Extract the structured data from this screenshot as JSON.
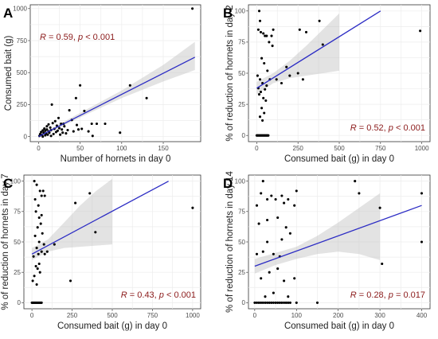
{
  "chart_data": [
    {
      "type": "scatter",
      "panel": "A",
      "xlabel": "Number of hornets in day 0",
      "ylabel": "Consumed bait (g)",
      "xticks": [
        0,
        50,
        100,
        150
      ],
      "yticks": [
        0,
        250,
        500,
        750,
        1000
      ],
      "xlim": [
        -10,
        195
      ],
      "ylim": [
        -40,
        1030
      ],
      "stat_r": "R = 0.59, ",
      "stat_p": "p < 0.001",
      "stat_pos": "top-left",
      "fit": {
        "x": [
          0,
          188
        ],
        "y": [
          0,
          620
        ]
      },
      "band": {
        "x": [
          0,
          30,
          60,
          100,
          150,
          188
        ],
        "lower": [
          -10,
          85,
          180,
          300,
          430,
          520
        ],
        "upper": [
          10,
          115,
          220,
          360,
          560,
          740
        ]
      },
      "points": [
        [
          1,
          5
        ],
        [
          2,
          20
        ],
        [
          3,
          35
        ],
        [
          4,
          12
        ],
        [
          5,
          48
        ],
        [
          5,
          0
        ],
        [
          6,
          30
        ],
        [
          7,
          62
        ],
        [
          8,
          10
        ],
        [
          8,
          45
        ],
        [
          9,
          25
        ],
        [
          10,
          80
        ],
        [
          10,
          55
        ],
        [
          11,
          15
        ],
        [
          12,
          95
        ],
        [
          12,
          40
        ],
        [
          13,
          30
        ],
        [
          14,
          70
        ],
        [
          15,
          50
        ],
        [
          15,
          5
        ],
        [
          16,
          250
        ],
        [
          17,
          105
        ],
        [
          18,
          20
        ],
        [
          19,
          60
        ],
        [
          20,
          120
        ],
        [
          21,
          35
        ],
        [
          22,
          85
        ],
        [
          23,
          45
        ],
        [
          24,
          145
        ],
        [
          25,
          65
        ],
        [
          26,
          15
        ],
        [
          27,
          100
        ],
        [
          28,
          55
        ],
        [
          29,
          30
        ],
        [
          30,
          100
        ],
        [
          31,
          80
        ],
        [
          33,
          25
        ],
        [
          35,
          50
        ],
        [
          37,
          205
        ],
        [
          40,
          130
        ],
        [
          42,
          40
        ],
        [
          45,
          300
        ],
        [
          46,
          90
        ],
        [
          48,
          55
        ],
        [
          50,
          400
        ],
        [
          52,
          60
        ],
        [
          55,
          200
        ],
        [
          60,
          40
        ],
        [
          64,
          100
        ],
        [
          65,
          5
        ],
        [
          70,
          100
        ],
        [
          80,
          100
        ],
        [
          98,
          30
        ],
        [
          110,
          400
        ],
        [
          130,
          300
        ],
        [
          185,
          1000
        ]
      ]
    },
    {
      "type": "scatter",
      "panel": "B",
      "xlabel": "Consumed bait (g) in day 0",
      "ylabel": "% of reduction of hornets in day 2",
      "xticks": [
        0,
        250,
        500,
        750,
        1000
      ],
      "yticks": [
        0,
        25,
        50,
        75,
        100
      ],
      "xlim": [
        -50,
        1050
      ],
      "ylim": [
        -5,
        105
      ],
      "stat_r": "R = 0.52, ",
      "stat_p": "p < 0.001",
      "stat_pos": "bottom-right",
      "fit": {
        "x": [
          0,
          750
        ],
        "y": [
          38,
          100
        ]
      },
      "band": {
        "x": [
          0,
          100,
          200,
          300,
          400,
          500
        ],
        "lower": [
          33,
          42,
          46,
          48,
          50,
          52
        ],
        "upper": [
          43,
          50,
          60,
          72,
          85,
          98
        ]
      },
      "points": [
        [
          0,
          0
        ],
        [
          5,
          0
        ],
        [
          10,
          0
        ],
        [
          15,
          0
        ],
        [
          20,
          0
        ],
        [
          25,
          0
        ],
        [
          30,
          0
        ],
        [
          35,
          0
        ],
        [
          40,
          0
        ],
        [
          45,
          0
        ],
        [
          50,
          0
        ],
        [
          55,
          0
        ],
        [
          60,
          0
        ],
        [
          65,
          0
        ],
        [
          70,
          0
        ],
        [
          15,
          100
        ],
        [
          20,
          92
        ],
        [
          10,
          85
        ],
        [
          25,
          83
        ],
        [
          40,
          82
        ],
        [
          50,
          80
        ],
        [
          60,
          80
        ],
        [
          75,
          75
        ],
        [
          90,
          80
        ],
        [
          100,
          85
        ],
        [
          95,
          72
        ],
        [
          30,
          62
        ],
        [
          45,
          58
        ],
        [
          5,
          48
        ],
        [
          20,
          45
        ],
        [
          35,
          42
        ],
        [
          60,
          40
        ],
        [
          10,
          38
        ],
        [
          50,
          37
        ],
        [
          25,
          35
        ],
        [
          40,
          30
        ],
        [
          55,
          28
        ],
        [
          30,
          22
        ],
        [
          45,
          18
        ],
        [
          20,
          15
        ],
        [
          35,
          12
        ],
        [
          15,
          33
        ],
        [
          65,
          52
        ],
        [
          80,
          45
        ],
        [
          120,
          45
        ],
        [
          150,
          42
        ],
        [
          180,
          55
        ],
        [
          200,
          48
        ],
        [
          250,
          50
        ],
        [
          280,
          45
        ],
        [
          260,
          85
        ],
        [
          300,
          83
        ],
        [
          380,
          92
        ],
        [
          400,
          73
        ],
        [
          990,
          84
        ]
      ]
    },
    {
      "type": "scatter",
      "panel": "C",
      "xlabel": "Consumed bait (g) in day 0",
      "ylabel": "% of reduction of hornets in day 7",
      "xticks": [
        0,
        250,
        500,
        750,
        1000
      ],
      "yticks": [
        0,
        25,
        50,
        75,
        100
      ],
      "xlim": [
        -50,
        1050
      ],
      "ylim": [
        -5,
        105
      ],
      "stat_r": "R = 0.43, ",
      "stat_p": "p < 0.001",
      "stat_pos": "bottom-right",
      "fit": {
        "x": [
          0,
          850
        ],
        "y": [
          40,
          100
        ]
      },
      "band": {
        "x": [
          0,
          100,
          200,
          300,
          400,
          500
        ],
        "lower": [
          35,
          42,
          45,
          46,
          47,
          48
        ],
        "upper": [
          45,
          52,
          66,
          80,
          92,
          102
        ]
      },
      "points": [
        [
          0,
          0
        ],
        [
          5,
          0
        ],
        [
          10,
          0
        ],
        [
          15,
          0
        ],
        [
          20,
          0
        ],
        [
          25,
          0
        ],
        [
          30,
          0
        ],
        [
          35,
          0
        ],
        [
          40,
          0
        ],
        [
          45,
          0
        ],
        [
          50,
          0
        ],
        [
          55,
          0
        ],
        [
          60,
          0
        ],
        [
          15,
          100
        ],
        [
          30,
          97
        ],
        [
          50,
          92
        ],
        [
          60,
          88
        ],
        [
          70,
          92
        ],
        [
          80,
          88
        ],
        [
          20,
          85
        ],
        [
          40,
          80
        ],
        [
          60,
          72
        ],
        [
          25,
          75
        ],
        [
          45,
          70
        ],
        [
          55,
          65
        ],
        [
          35,
          62
        ],
        [
          65,
          57
        ],
        [
          20,
          55
        ],
        [
          45,
          50
        ],
        [
          75,
          48
        ],
        [
          30,
          45
        ],
        [
          60,
          42
        ],
        [
          40,
          40
        ],
        [
          10,
          38
        ],
        [
          80,
          40
        ],
        [
          25,
          30
        ],
        [
          35,
          28
        ],
        [
          50,
          25
        ],
        [
          15,
          22
        ],
        [
          5,
          18
        ],
        [
          30,
          15
        ],
        [
          45,
          32
        ],
        [
          95,
          42
        ],
        [
          140,
          48
        ],
        [
          240,
          18
        ],
        [
          270,
          82
        ],
        [
          360,
          90
        ],
        [
          395,
          58
        ],
        [
          1000,
          78
        ]
      ]
    },
    {
      "type": "scatter",
      "panel": "D",
      "xlabel": "Consumed bait (g) in day 0",
      "ylabel": "% of reduction of hornets in day 14",
      "xticks": [
        0,
        100,
        200,
        300,
        400
      ],
      "yticks": [
        0,
        25,
        50,
        75,
        100
      ],
      "xlim": [
        -15,
        420
      ],
      "ylim": [
        -5,
        105
      ],
      "stat_r": "R = 0.28, ",
      "stat_p": "p = 0.017",
      "stat_pos": "bottom-right",
      "fit": {
        "x": [
          0,
          400
        ],
        "y": [
          30,
          80
        ]
      },
      "band": {
        "x": [
          0,
          50,
          100,
          150,
          200,
          250,
          300
        ],
        "lower": [
          24,
          31,
          36,
          40,
          42,
          40,
          35
        ],
        "upper": [
          36,
          41,
          46,
          55,
          66,
          78,
          90
        ]
      },
      "points": [
        [
          0,
          0
        ],
        [
          5,
          0
        ],
        [
          10,
          0
        ],
        [
          15,
          0
        ],
        [
          20,
          0
        ],
        [
          25,
          0
        ],
        [
          30,
          0
        ],
        [
          35,
          0
        ],
        [
          40,
          0
        ],
        [
          45,
          0
        ],
        [
          50,
          0
        ],
        [
          55,
          0
        ],
        [
          60,
          0
        ],
        [
          65,
          0
        ],
        [
          70,
          0
        ],
        [
          75,
          0
        ],
        [
          80,
          0
        ],
        [
          85,
          0
        ],
        [
          100,
          0
        ],
        [
          150,
          0
        ],
        [
          5,
          80
        ],
        [
          15,
          90
        ],
        [
          20,
          100
        ],
        [
          30,
          85
        ],
        [
          40,
          88
        ],
        [
          50,
          85
        ],
        [
          65,
          88
        ],
        [
          70,
          82
        ],
        [
          80,
          85
        ],
        [
          95,
          80
        ],
        [
          100,
          92
        ],
        [
          10,
          65
        ],
        [
          30,
          68
        ],
        [
          55,
          70
        ],
        [
          75,
          62
        ],
        [
          85,
          57
        ],
        [
          20,
          42
        ],
        [
          45,
          40
        ],
        [
          60,
          38
        ],
        [
          5,
          40
        ],
        [
          15,
          20
        ],
        [
          35,
          25
        ],
        [
          55,
          28
        ],
        [
          70,
          18
        ],
        [
          25,
          5
        ],
        [
          45,
          8
        ],
        [
          80,
          5
        ],
        [
          95,
          20
        ],
        [
          65,
          52
        ],
        [
          30,
          50
        ],
        [
          240,
          100
        ],
        [
          250,
          90
        ],
        [
          300,
          78
        ],
        [
          305,
          32
        ],
        [
          400,
          90
        ],
        [
          400,
          50
        ]
      ]
    }
  ]
}
